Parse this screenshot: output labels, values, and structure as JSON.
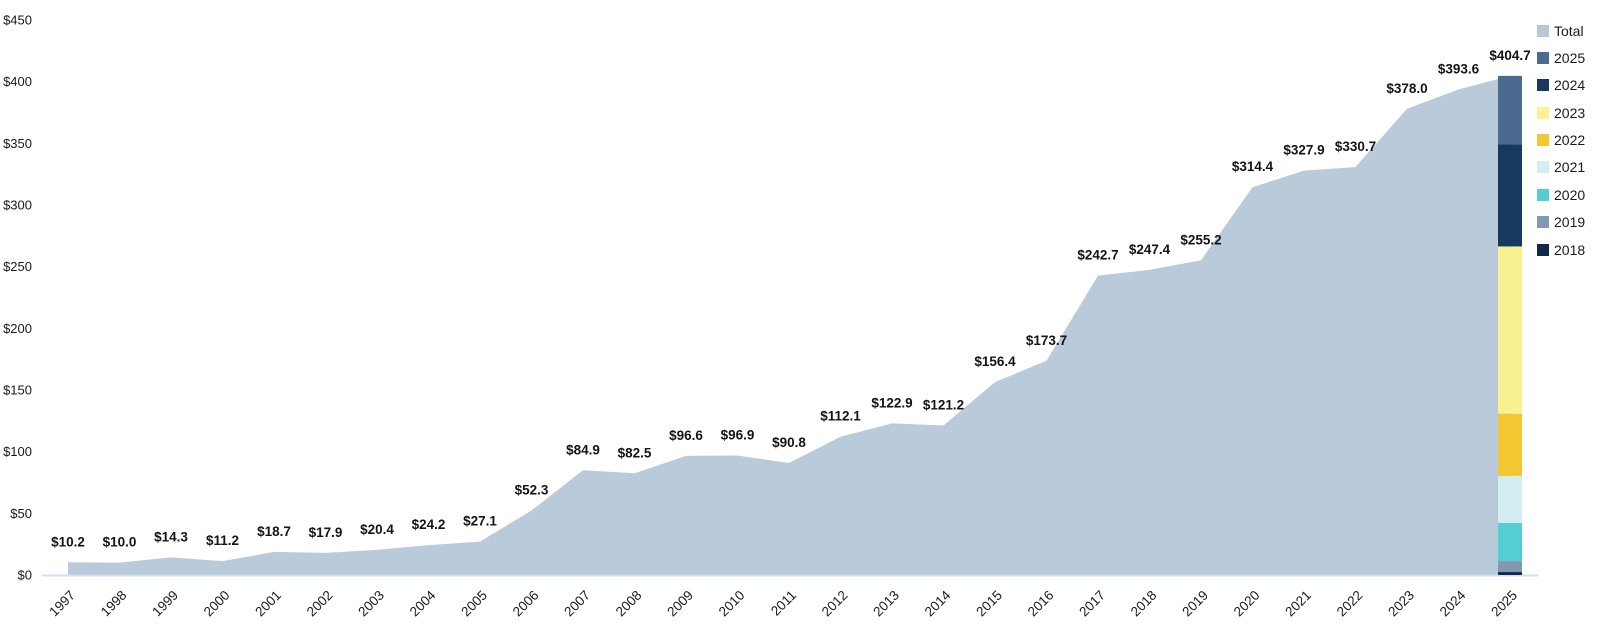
{
  "chart_data": {
    "type": "area",
    "title": "",
    "xlabel": "",
    "ylabel": "",
    "grid": "off",
    "legend_position": "top-right",
    "y_axis": {
      "tick_values": [
        0,
        50,
        100,
        150,
        200,
        250,
        300,
        350,
        400,
        450
      ],
      "tick_prefix": "$",
      "ylim": [
        0,
        450
      ]
    },
    "x": [
      "1997",
      "1998",
      "1999",
      "2000",
      "2001",
      "2002",
      "2003",
      "2004",
      "2005",
      "2006",
      "2007",
      "2008",
      "2009",
      "2010",
      "2011",
      "2012",
      "2013",
      "2014",
      "2015",
      "2016",
      "2017",
      "2018",
      "2019",
      "2020",
      "2021",
      "2022",
      "2023",
      "2024",
      "2025"
    ],
    "series": [
      {
        "name": "Total",
        "values": [
          10.2,
          10.0,
          14.3,
          11.2,
          18.7,
          17.9,
          20.4,
          24.2,
          27.1,
          52.3,
          84.9,
          82.5,
          96.6,
          96.9,
          90.8,
          112.1,
          122.9,
          121.2,
          156.4,
          173.7,
          242.7,
          247.4,
          255.2,
          314.4,
          327.9,
          330.7,
          378.0,
          393.6,
          404.7
        ]
      }
    ],
    "data_label_prefix": "$",
    "stacked_bar": {
      "at_x": "2025",
      "total": 404.7,
      "segments_bottom_to_top": [
        {
          "name": "2018",
          "value": 2.4,
          "color": "#13294a"
        },
        {
          "name": "2019",
          "value": 8.9,
          "color": "#8399b0"
        },
        {
          "name": "2020",
          "value": 30.9,
          "color": "#55cdd2"
        },
        {
          "name": "2021",
          "value": 38.2,
          "color": "#d3eef0"
        },
        {
          "name": "2022",
          "value": 50.4,
          "color": "#f3c732"
        },
        {
          "name": "2023",
          "value": 135.6,
          "color": "#f8f293"
        },
        {
          "name": "2024",
          "value": 82.9,
          "color": "#17395e"
        },
        {
          "name": "2025",
          "value": 55.4,
          "color": "#4a6a90"
        }
      ]
    },
    "legend": [
      {
        "label": "Total",
        "color": "#b9c8d9"
      },
      {
        "label": "2025",
        "color": "#4a6a90"
      },
      {
        "label": "2024",
        "color": "#17395e"
      },
      {
        "label": "2023",
        "color": "#f8f293"
      },
      {
        "label": "2022",
        "color": "#f3c732"
      },
      {
        "label": "2021",
        "color": "#d3eef0"
      },
      {
        "label": "2020",
        "color": "#55cdd2"
      },
      {
        "label": "2019",
        "color": "#8399b0"
      },
      {
        "label": "2018",
        "color": "#13294a"
      }
    ],
    "colors": {
      "area_fill": "#b9cada",
      "axis_line": "#cfe0f2",
      "text": "#1a1a1a"
    }
  }
}
